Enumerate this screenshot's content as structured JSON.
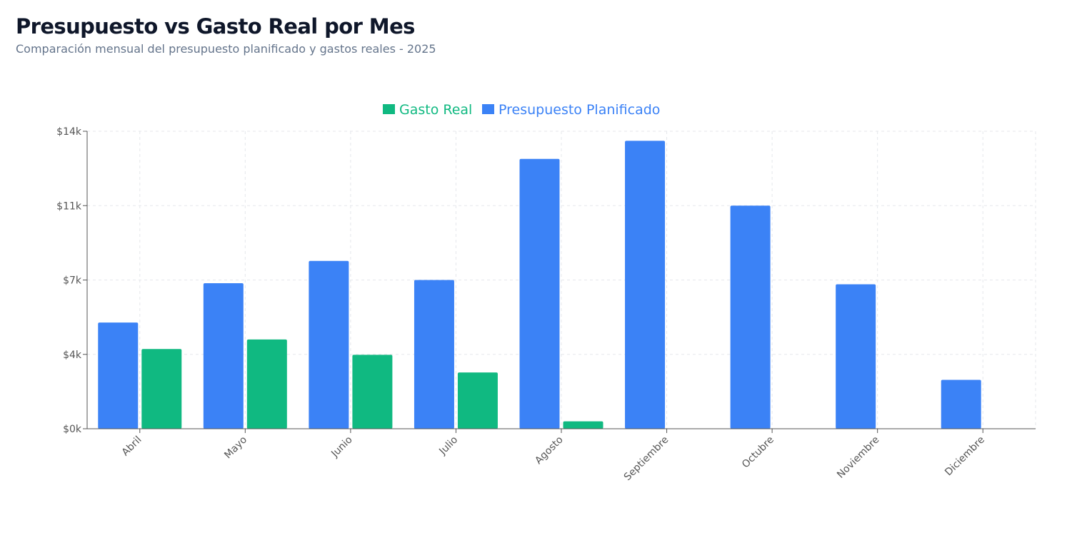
{
  "header": {
    "title": "Presupuesto vs Gasto Real por Mes",
    "subtitle": "Comparación mensual del presupuesto planificado y gastos reales - 2025"
  },
  "colors": {
    "presupuesto": "#3b82f6",
    "gasto": "#10b981",
    "axis": "#555555",
    "grid": "#e5e7eb"
  },
  "chart_data": {
    "type": "bar",
    "categories": [
      "Abril",
      "Mayo",
      "Junio",
      "Julio",
      "Agosto",
      "Septiembre",
      "Octubre",
      "Noviembre",
      "Diciembre"
    ],
    "series": [
      {
        "name": "Presupuesto Planificado",
        "color": "#3b82f6",
        "values": [
          5000,
          6850,
          7900,
          7000,
          12700,
          13550,
          10500,
          6800,
          2300
        ]
      },
      {
        "name": "Gasto Real",
        "color": "#10b981",
        "values": [
          3750,
          4200,
          3480,
          2650,
          350,
          0,
          0,
          0,
          0
        ]
      }
    ],
    "legend_order": [
      "Gasto Real",
      "Presupuesto Planificado"
    ],
    "legend_position": "top-center",
    "y_ticks": [
      0,
      3500,
      7000,
      10500,
      14000
    ],
    "y_tick_labels": [
      "$0k",
      "$4k",
      "$7k",
      "$11k",
      "$14k"
    ],
    "ylim": [
      0,
      14000
    ],
    "grid": true,
    "xlabel": "",
    "ylabel": ""
  }
}
